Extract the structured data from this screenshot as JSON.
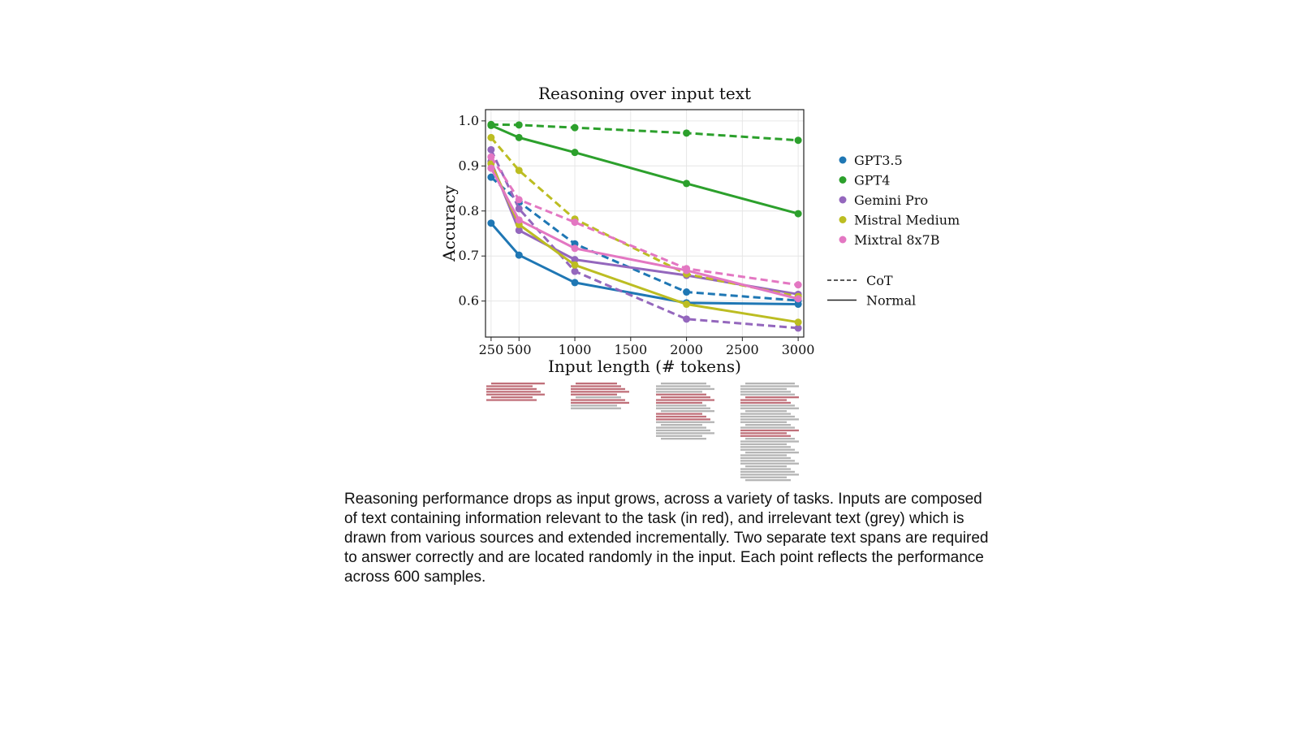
{
  "chart_data": {
    "type": "line",
    "title": "Reasoning over input text",
    "xlabel": "Input length (# tokens)",
    "ylabel": "Accuracy",
    "x": [
      250,
      500,
      1000,
      2000,
      3000
    ],
    "xlim": [
      200,
      3050
    ],
    "ylim": [
      0.52,
      1.025
    ],
    "xticks": [
      250,
      500,
      1000,
      1500,
      2000,
      2500,
      3000
    ],
    "yticks": [
      0.6,
      0.7,
      0.8,
      0.9,
      1.0
    ],
    "grid": true,
    "legend_position": "outside-right",
    "series": [
      {
        "name": "GPT3.5",
        "color": "#1f77b4",
        "style": "Normal",
        "values": [
          0.773,
          0.702,
          0.641,
          0.596,
          0.593
        ]
      },
      {
        "name": "GPT3.5",
        "color": "#1f77b4",
        "style": "CoT",
        "values": [
          0.875,
          0.82,
          0.727,
          0.62,
          0.601
        ]
      },
      {
        "name": "GPT4",
        "color": "#2ca02c",
        "style": "Normal",
        "values": [
          0.99,
          0.963,
          0.93,
          0.861,
          0.794
        ]
      },
      {
        "name": "GPT4",
        "color": "#2ca02c",
        "style": "CoT",
        "values": [
          0.992,
          0.991,
          0.985,
          0.973,
          0.957
        ]
      },
      {
        "name": "Gemini Pro",
        "color": "#9467bd",
        "style": "Normal",
        "values": [
          0.91,
          0.757,
          0.692,
          0.657,
          0.615
        ]
      },
      {
        "name": "Gemini Pro",
        "color": "#9467bd",
        "style": "CoT",
        "values": [
          0.936,
          0.805,
          0.666,
          0.56,
          0.54
        ]
      },
      {
        "name": "Mistral Medium",
        "color": "#bcbd22",
        "style": "Normal",
        "values": [
          0.905,
          0.77,
          0.68,
          0.593,
          0.553
        ]
      },
      {
        "name": "Mistral Medium",
        "color": "#bcbd22",
        "style": "CoT",
        "values": [
          0.963,
          0.89,
          0.782,
          0.66,
          0.61
        ]
      },
      {
        "name": "Mixtral 8x7B",
        "color": "#e377c2",
        "style": "Normal",
        "values": [
          0.895,
          0.78,
          0.717,
          0.668,
          0.605
        ]
      },
      {
        "name": "Mixtral 8x7B",
        "color": "#e377c2",
        "style": "CoT",
        "values": [
          0.92,
          0.825,
          0.775,
          0.672,
          0.636
        ]
      }
    ],
    "legend_models": [
      {
        "name": "GPT3.5",
        "color": "#1f77b4"
      },
      {
        "name": "GPT4",
        "color": "#2ca02c"
      },
      {
        "name": "Gemini Pro",
        "color": "#9467bd"
      },
      {
        "name": "Mistral Medium",
        "color": "#bcbd22"
      },
      {
        "name": "Mixtral 8x7B",
        "color": "#e377c2"
      }
    ],
    "legend_styles": [
      {
        "name": "CoT",
        "dash": true
      },
      {
        "name": "Normal",
        "dash": false
      }
    ],
    "input_illustration": {
      "relevant_color": "#c0707a",
      "irrelevant_color": "#b5b5b5"
    }
  },
  "caption": "Reasoning performance drops as input grows, across a variety of tasks. Inputs are composed of text containing information relevant to the task (in red), and irrelevant text (grey) which is drawn from various sources and extended incrementally. Two separate text spans are required to answer correctly and are located randomly in the input. Each point reflects the performance across 600 samples."
}
